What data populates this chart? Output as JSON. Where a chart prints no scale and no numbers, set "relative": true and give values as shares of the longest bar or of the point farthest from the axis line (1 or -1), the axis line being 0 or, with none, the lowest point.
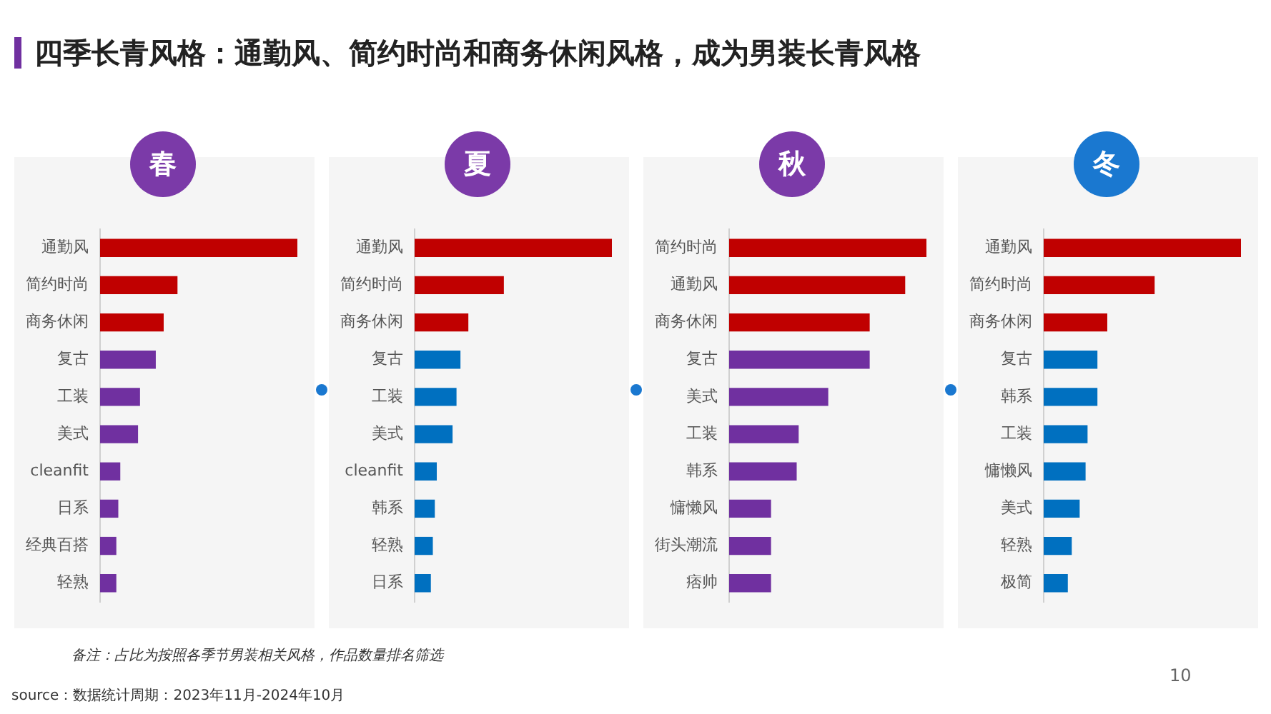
{
  "chart_data": [
    {
      "type": "bar",
      "orientation": "horizontal",
      "relative": true,
      "title": "春",
      "categories": [
        "通勤风",
        "简约时尚",
        "商务休闲",
        "复古",
        "工装",
        "美式",
        "cleanfit",
        "日系",
        "经典百搭",
        "轻熟"
      ],
      "values": [
        1,
        0.39,
        0.32,
        0.28,
        0.2,
        0.19,
        0.1,
        0.09,
        0.08,
        0.08
      ],
      "colors": [
        "#c00000",
        "#c00000",
        "#c00000",
        "#7030a0",
        "#7030a0",
        "#7030a0",
        "#7030a0",
        "#7030a0",
        "#7030a0",
        "#7030a0"
      ],
      "legend": false,
      "grid": false,
      "annotations": [
        "四季长青风格：通勤风、简约时尚和商务休闲风格，成为男装长青风格",
        "备注：占比为按照各季节男装相关风格，作品数量排名筛选",
        "source：数据统计周期：2023年11月-2024年10月",
        "10"
      ]
    },
    {
      "type": "bar",
      "orientation": "horizontal",
      "relative": true,
      "title": "夏",
      "categories": [
        "通勤风",
        "简约时尚",
        "商务休闲",
        "复古",
        "工装",
        "美式",
        "cleanfit",
        "韩系",
        "轻熟",
        "日系"
      ],
      "values": [
        1,
        0.45,
        0.27,
        0.23,
        0.21,
        0.19,
        0.11,
        0.1,
        0.09,
        0.08
      ],
      "colors": [
        "#c00000",
        "#c00000",
        "#c00000",
        "#0070c0",
        "#0070c0",
        "#0070c0",
        "#0070c0",
        "#0070c0",
        "#0070c0",
        "#0070c0"
      ],
      "legend": false,
      "grid": false
    },
    {
      "type": "bar",
      "orientation": "horizontal",
      "relative": true,
      "title": "秋",
      "categories": [
        "简约时尚",
        "通勤风",
        "商务休闲",
        "复古",
        "美式",
        "工装",
        "韩系",
        "慵懒风",
        "街头潮流",
        "痞帅"
      ],
      "values": [
        1,
        0.89,
        0.71,
        0.71,
        0.5,
        0.35,
        0.34,
        0.21,
        0.21,
        0.21
      ],
      "colors": [
        "#c00000",
        "#c00000",
        "#c00000",
        "#7030a0",
        "#7030a0",
        "#7030a0",
        "#7030a0",
        "#7030a0",
        "#7030a0",
        "#7030a0"
      ],
      "legend": false,
      "grid": false
    },
    {
      "type": "bar",
      "orientation": "horizontal",
      "relative": true,
      "title": "冬",
      "categories": [
        "通勤风",
        "简约时尚",
        "商务休闲",
        "复古",
        "韩系",
        "工装",
        "慵懒风",
        "美式",
        "轻熟",
        "极简"
      ],
      "values": [
        1,
        0.56,
        0.32,
        0.27,
        0.27,
        0.22,
        0.21,
        0.18,
        0.14,
        0.12
      ],
      "colors": [
        "#c00000",
        "#c00000",
        "#c00000",
        "#0070c0",
        "#0070c0",
        "#0070c0",
        "#0070c0",
        "#0070c0",
        "#0070c0",
        "#0070c0"
      ],
      "legend": false,
      "grid": false
    }
  ]
}
